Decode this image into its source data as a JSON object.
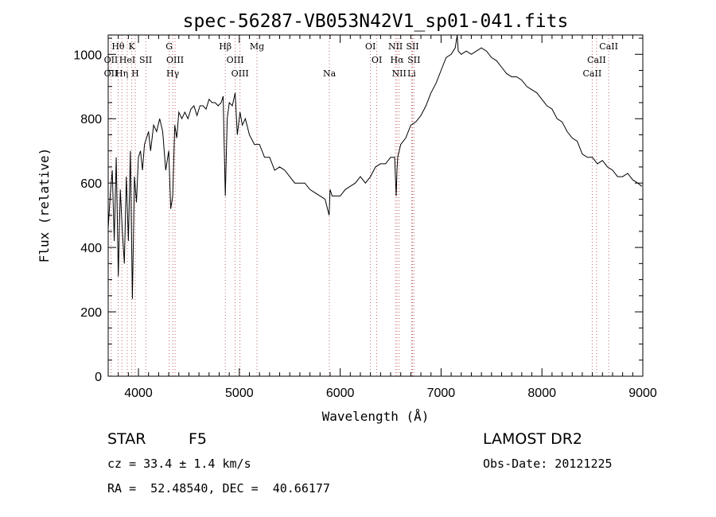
{
  "chart_data": {
    "type": "line",
    "title": "spec-56287-VB053N42V1_sp01-041.fits",
    "xlabel": "Wavelength (Å)",
    "ylabel": "Flux (relative)",
    "xlim": [
      3700,
      9000
    ],
    "ylim": [
      0,
      1060
    ],
    "x_ticks": [
      4000,
      5000,
      6000,
      7000,
      8000,
      9000
    ],
    "y_ticks": [
      0,
      200,
      400,
      600,
      800,
      1000
    ],
    "grid": false,
    "line_color": "#000000",
    "series": [
      {
        "x": [
          3700,
          3720,
          3740,
          3760,
          3780,
          3800,
          3820,
          3840,
          3860,
          3880,
          3900,
          3920,
          3940,
          3960,
          3980,
          4000,
          4020,
          4040,
          4060,
          4080,
          4100,
          4120,
          4150,
          4180,
          4210,
          4240,
          4270,
          4300,
          4320,
          4340,
          4360,
          4380,
          4400,
          4430,
          4460,
          4490,
          4520,
          4550,
          4580,
          4610,
          4640,
          4670,
          4700,
          4730,
          4760,
          4790,
          4820,
          4840,
          4861,
          4880,
          4900,
          4930,
          4959,
          4980,
          5007,
          5030,
          5060,
          5100,
          5150,
          5200,
          5250,
          5300,
          5350,
          5400,
          5450,
          5500,
          5550,
          5600,
          5650,
          5700,
          5750,
          5800,
          5850,
          5890,
          5900,
          5920,
          5950,
          6000,
          6050,
          6100,
          6150,
          6200,
          6250,
          6300,
          6350,
          6400,
          6450,
          6500,
          6540,
          6555,
          6563,
          6570,
          6585,
          6600,
          6650,
          6700,
          6750,
          6800,
          6850,
          6900,
          6950,
          7000,
          7050,
          7100,
          7140,
          7160,
          7170,
          7200,
          7250,
          7300,
          7350,
          7400,
          7450,
          7500,
          7550,
          7600,
          7650,
          7700,
          7750,
          7800,
          7850,
          7900,
          7950,
          8000,
          8050,
          8100,
          8150,
          8200,
          8250,
          8300,
          8350,
          8400,
          8450,
          8500,
          8550,
          8600,
          8650,
          8700,
          8750,
          8800,
          8850,
          8900,
          8950,
          8990
        ],
        "y": [
          460,
          560,
          640,
          420,
          680,
          310,
          580,
          450,
          350,
          620,
          420,
          700,
          240,
          620,
          540,
          680,
          700,
          640,
          720,
          740,
          760,
          700,
          780,
          760,
          800,
          760,
          640,
          700,
          520,
          560,
          780,
          740,
          820,
          800,
          820,
          800,
          830,
          840,
          810,
          840,
          840,
          830,
          860,
          850,
          850,
          840,
          850,
          870,
          560,
          800,
          850,
          840,
          880,
          750,
          820,
          780,
          800,
          750,
          720,
          720,
          680,
          680,
          640,
          650,
          640,
          620,
          600,
          600,
          600,
          580,
          570,
          560,
          550,
          500,
          580,
          560,
          560,
          560,
          580,
          590,
          600,
          620,
          600,
          620,
          650,
          660,
          660,
          680,
          680,
          560,
          640,
          680,
          700,
          720,
          740,
          780,
          790,
          810,
          840,
          880,
          910,
          950,
          990,
          1000,
          1020,
          1060,
          1010,
          1000,
          1010,
          1000,
          1010,
          1020,
          1010,
          990,
          980,
          960,
          940,
          930,
          930,
          920,
          900,
          890,
          880,
          860,
          840,
          830,
          800,
          790,
          760,
          740,
          730,
          690,
          680,
          680,
          660,
          670,
          650,
          640,
          620,
          620,
          630,
          610,
          600,
          590
        ]
      }
    ],
    "annotations": [
      {
        "label": "Hθ",
        "x": 3798,
        "row": 0
      },
      {
        "label": "K",
        "x": 3934,
        "row": 0
      },
      {
        "label": "G",
        "x": 4305,
        "row": 0
      },
      {
        "label": "Hβ",
        "x": 4861,
        "row": 0
      },
      {
        "label": "Mg",
        "x": 5175,
        "row": 0
      },
      {
        "label": "OI",
        "x": 6300,
        "row": 0
      },
      {
        "label": "NII",
        "x": 6548,
        "row": 0
      },
      {
        "label": "SII",
        "x": 6717,
        "row": 0
      },
      {
        "label": "CaII",
        "x": 8662,
        "row": 0
      },
      {
        "label": "OII",
        "x": 3727,
        "row": 1
      },
      {
        "label": "HeI",
        "x": 3889,
        "row": 1
      },
      {
        "label": "SII",
        "x": 4072,
        "row": 1
      },
      {
        "label": "OIII",
        "x": 4363,
        "row": 1
      },
      {
        "label": "OIII",
        "x": 4959,
        "row": 1
      },
      {
        "label": "OI",
        "x": 6363,
        "row": 1
      },
      {
        "label": "Hα",
        "x": 6563,
        "row": 1
      },
      {
        "label": "SII",
        "x": 6731,
        "row": 1
      },
      {
        "label": "CaII",
        "x": 8542,
        "row": 1
      },
      {
        "label": "OII",
        "x": 3727,
        "row": 2
      },
      {
        "label": "Hη",
        "x": 3835,
        "row": 2
      },
      {
        "label": "H",
        "x": 3968,
        "row": 2
      },
      {
        "label": "Hγ",
        "x": 4340,
        "row": 2
      },
      {
        "label": "OIII",
        "x": 5007,
        "row": 2
      },
      {
        "label": "Na",
        "x": 5893,
        "row": 2
      },
      {
        "label": "NII",
        "x": 6584,
        "row": 2
      },
      {
        "label": "Li",
        "x": 6708,
        "row": 2
      },
      {
        "label": "CaII",
        "x": 8498,
        "row": 2
      }
    ],
    "marker_lines": [
      3727,
      3798,
      3835,
      3889,
      3934,
      3968,
      4072,
      4305,
      4340,
      4363,
      4861,
      4959,
      5007,
      5175,
      5893,
      6300,
      6363,
      6548,
      6563,
      6584,
      6708,
      6717,
      6731,
      8498,
      8542,
      8662
    ]
  },
  "info": {
    "object_class": "STAR",
    "subclass": "F5",
    "survey": "LAMOST DR2",
    "cz": "cz = 33.4 ± 1.4 km/s",
    "obs_date": "Obs-Date: 20121225",
    "coords": "RA =  52.48540, DEC =  40.66177"
  }
}
